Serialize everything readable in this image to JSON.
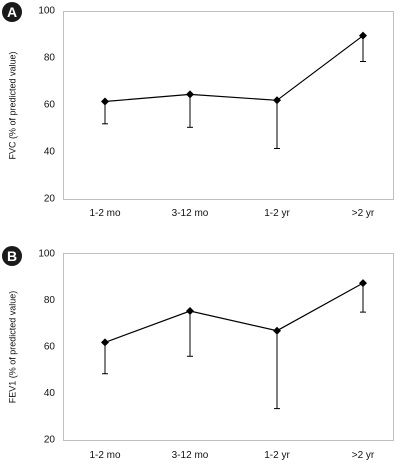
{
  "chart_data": [
    {
      "type": "line",
      "panel_label": "A",
      "ylabel": "FVC (% of predicted value)",
      "xlabel": "",
      "categories": [
        "1-2 mo",
        "3-12 mo",
        "1-2 yr",
        ">2 yr"
      ],
      "values": [
        61.5,
        64.5,
        62,
        89.5
      ],
      "error_lower": [
        52,
        50.5,
        41.5,
        78.5
      ],
      "ylim": [
        20,
        100
      ],
      "yticks": [
        "20",
        "40",
        "60",
        "80",
        "100"
      ],
      "grid": false,
      "marker": "diamond",
      "line_color": "#000000",
      "frame_color": "#bfbfbf"
    },
    {
      "type": "line",
      "panel_label": "B",
      "ylabel": "FEV1 (% of predicted value)",
      "xlabel": "",
      "categories": [
        "1-2 mo",
        "3-12 mo",
        "1-2 yr",
        ">2 yr"
      ],
      "values": [
        62,
        75.5,
        67,
        87.5
      ],
      "error_lower": [
        48.5,
        56,
        33.5,
        75
      ],
      "ylim": [
        20,
        100
      ],
      "yticks": [
        "20",
        "40",
        "60",
        "80",
        "100"
      ],
      "grid": false,
      "marker": "diamond",
      "line_color": "#000000",
      "frame_color": "#bfbfbf"
    }
  ]
}
